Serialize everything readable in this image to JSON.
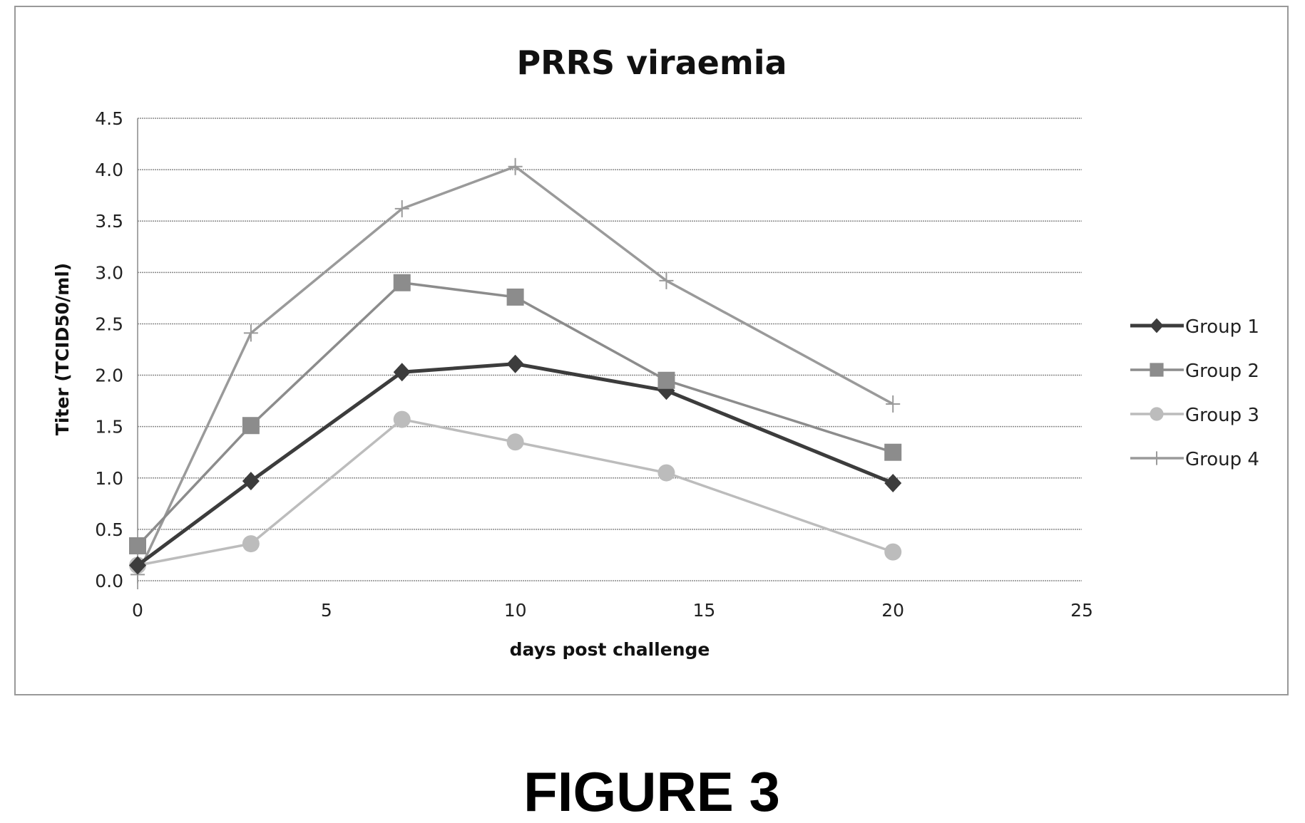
{
  "chart_data": {
    "type": "line",
    "title": "PRRS viraemia",
    "xlabel": "days post challenge",
    "ylabel": "Titer (TCID50/ml)",
    "xlim": [
      0,
      25
    ],
    "ylim": [
      0,
      4.5
    ],
    "xticks": [
      "0",
      "5",
      "10",
      "15",
      "20",
      "25"
    ],
    "yticks": [
      "0.0",
      "0.5",
      "1.0",
      "1.5",
      "2.0",
      "2.5",
      "3.0",
      "3.5",
      "4.0",
      "4.5"
    ],
    "grid": "horizontal",
    "legend_position": "right",
    "x": [
      0,
      3,
      7,
      10,
      14,
      20
    ],
    "series": [
      {
        "name": "Group 1",
        "marker": "diamond",
        "color": "#3c3c3c",
        "values": [
          0.15,
          0.97,
          2.03,
          2.11,
          1.85,
          0.95
        ]
      },
      {
        "name": "Group 2",
        "marker": "square",
        "color": "#8c8c8c",
        "values": [
          0.34,
          1.51,
          2.9,
          2.76,
          1.95,
          1.25
        ]
      },
      {
        "name": "Group 3",
        "marker": "circle",
        "color": "#bcbcbc",
        "values": [
          0.15,
          0.36,
          1.57,
          1.35,
          1.05,
          0.28
        ]
      },
      {
        "name": "Group 4",
        "marker": "plus",
        "color": "#9a9a9a",
        "values": [
          0.06,
          2.41,
          3.62,
          4.03,
          2.92,
          1.72
        ]
      }
    ]
  },
  "caption": "FIGURE 3"
}
